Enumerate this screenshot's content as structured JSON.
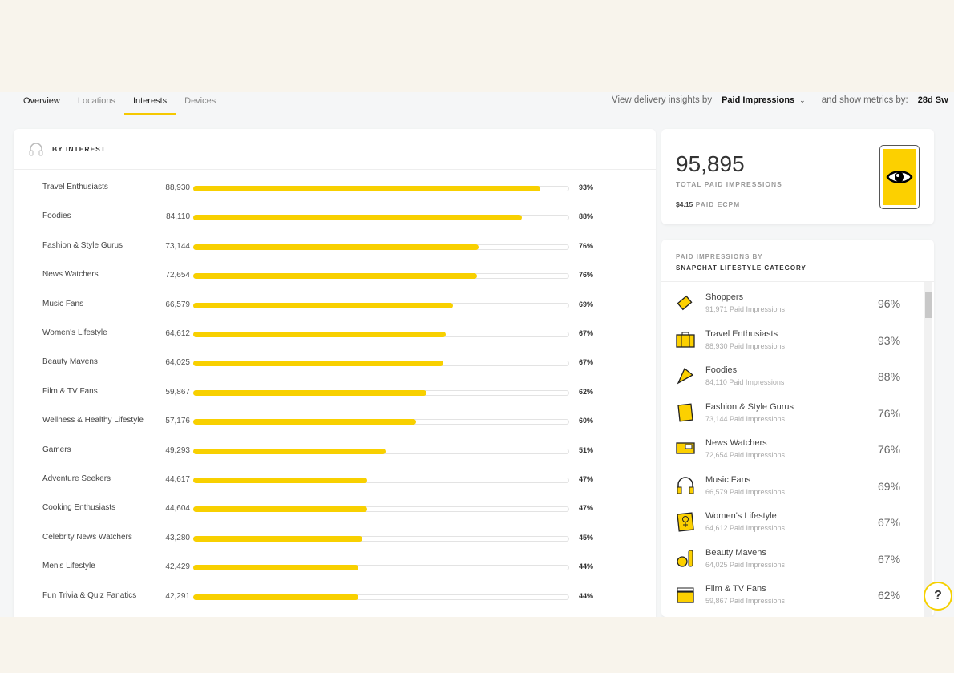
{
  "tabs": [
    "Overview",
    "Locations",
    "Interests",
    "Devices"
  ],
  "controls": {
    "prefix": "View delivery insights by",
    "metric": "Paid Impressions",
    "middle": "and show metrics by:",
    "window": "28d Sw"
  },
  "left": {
    "title": "BY INTEREST"
  },
  "total": {
    "value": "95,895",
    "label": "TOTAL PAID IMPRESSIONS",
    "ecpm": "$4.15",
    "ecpm_label": "PAID ECPM"
  },
  "category": {
    "title1": "PAID IMPRESSIONS BY",
    "title2": "SNAPCHAT LIFESTYLE CATEGORY"
  },
  "colors": {
    "accent": "#f8d000"
  },
  "chart_data": {
    "type": "bar",
    "title": "BY INTEREST",
    "categories": [
      "Travel Enthusiasts",
      "Foodies",
      "Fashion & Style Gurus",
      "News Watchers",
      "Music Fans",
      "Women's Lifestyle",
      "Beauty Mavens",
      "Film & TV Fans",
      "Wellness & Healthy Lifestyle",
      "Gamers",
      "Adventure Seekers",
      "Cooking Enthusiasts",
      "Celebrity News Watchers",
      "Men's Lifestyle",
      "Fun Trivia & Quiz Fanatics"
    ],
    "values": [
      "88,930",
      "84,110",
      "73,144",
      "72,654",
      "66,579",
      "64,612",
      "64,025",
      "59,867",
      "57,176",
      "49,293",
      "44,617",
      "44,604",
      "43,280",
      "42,429",
      "42,291"
    ],
    "percents": [
      "93%",
      "88%",
      "76%",
      "76%",
      "69%",
      "67%",
      "67%",
      "62%",
      "60%",
      "51%",
      "47%",
      "47%",
      "45%",
      "44%",
      "44%"
    ],
    "fill_percent": [
      92.7,
      87.7,
      76.3,
      75.8,
      69.4,
      67.4,
      66.8,
      62.4,
      59.6,
      51.4,
      46.5,
      46.5,
      45.1,
      44.2,
      44.1
    ]
  },
  "categories": [
    {
      "name": "Shoppers",
      "sub": "91,971 Paid Impressions",
      "pct": "96%",
      "icon": "price-tag-icon"
    },
    {
      "name": "Travel Enthusiasts",
      "sub": "88,930 Paid Impressions",
      "pct": "93%",
      "icon": "suitcase-icon"
    },
    {
      "name": "Foodies",
      "sub": "84,110 Paid Impressions",
      "pct": "88%",
      "icon": "pizza-icon"
    },
    {
      "name": "Fashion & Style Gurus",
      "sub": "73,144 Paid Impressions",
      "pct": "76%",
      "icon": "magazine-icon"
    },
    {
      "name": "News Watchers",
      "sub": "72,654 Paid Impressions",
      "pct": "76%",
      "icon": "news-tv-icon"
    },
    {
      "name": "Music Fans",
      "sub": "66,579 Paid Impressions",
      "pct": "69%",
      "icon": "headphones-icon"
    },
    {
      "name": "Women's Lifestyle",
      "sub": "64,612 Paid Impressions",
      "pct": "67%",
      "icon": "female-symbol-icon"
    },
    {
      "name": "Beauty Mavens",
      "sub": "64,025 Paid Impressions",
      "pct": "67%",
      "icon": "makeup-icon"
    },
    {
      "name": "Film & TV Fans",
      "sub": "59,867 Paid Impressions",
      "pct": "62%",
      "icon": "clapperboard-icon"
    }
  ]
}
